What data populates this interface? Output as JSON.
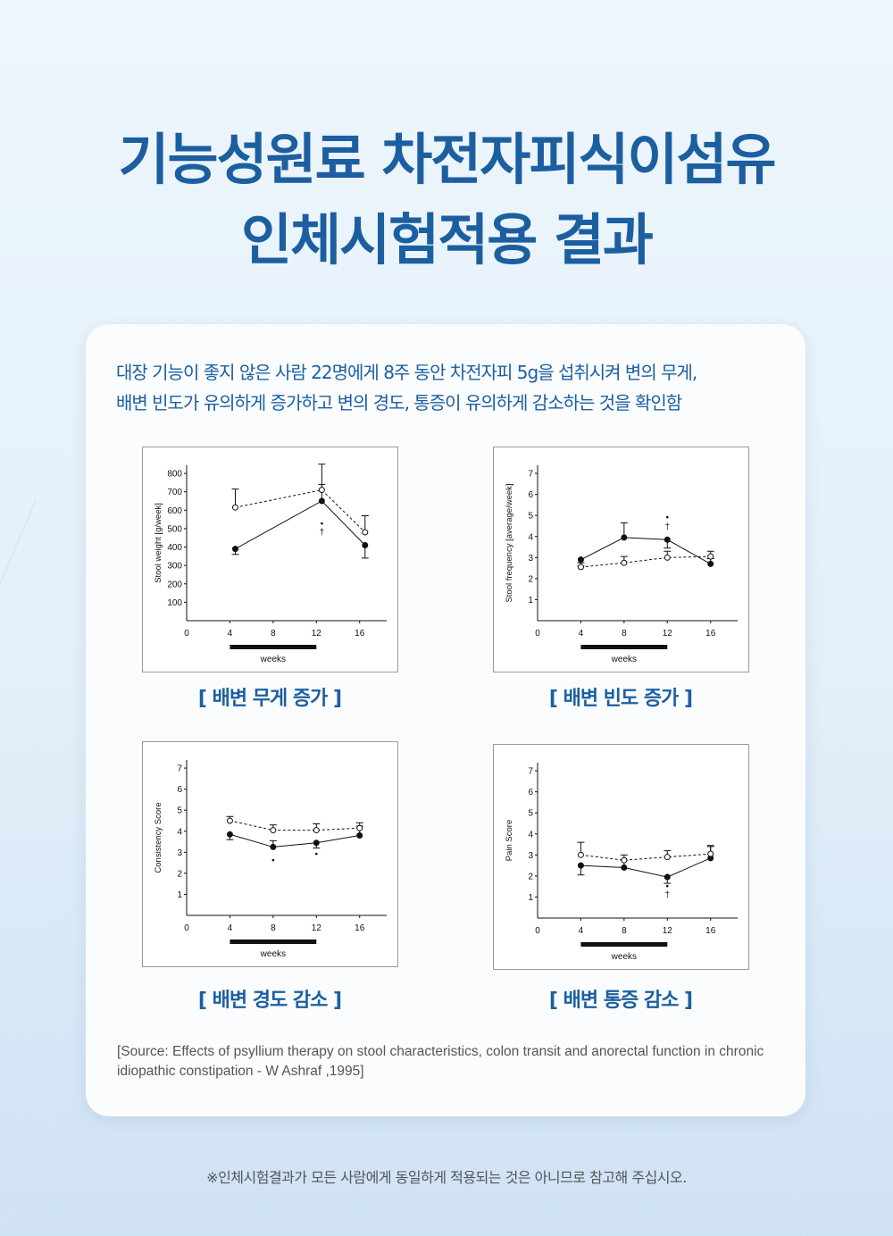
{
  "title_line1": "기능성원료 차전자피식이섬유",
  "title_line2": "인체시험적용 결과",
  "description": [
    "대장 기능이 좋지 않은 사람 22명에게 8주 동안 차전자피 5g을 섭취시켜 변의 무게,",
    "배변 빈도가 유의하게 증가하고 변의 경도, 통증이 유의하게 감소하는 것을 확인함"
  ],
  "captions": [
    "[ 배변 무게 증가 ]",
    "[ 배변 빈도 증가 ]",
    "[ 배변 경도 감소 ]",
    "[ 배변 통증 감소 ]"
  ],
  "source": "[Source: Effects of psyllium therapy on stool characteristics, colon transit and anorectal function in chronic idiopathic constipation - W Ashraf ,1995]",
  "footnote": "※인체시험결과가 모든 사람에게 동일하게 적용되는 것은 아니므로 참고해 주십시오.",
  "colors": {
    "title": "#1c5fa0",
    "text": "#555555"
  },
  "chart_data": [
    {
      "type": "line",
      "ylabel": "Stool weight [g/week]",
      "xlabel": "weeks",
      "x_ticks": [
        0,
        4,
        8,
        12,
        16
      ],
      "y_ticks": [
        100,
        200,
        300,
        400,
        500,
        600,
        700,
        800
      ],
      "ylim": [
        0,
        800
      ],
      "treatment_bar": [
        4,
        12
      ],
      "series": [
        {
          "style": "solid-filled",
          "x": [
            4.5,
            12.5,
            16.5
          ],
          "y": [
            390,
            650,
            410
          ],
          "err": [
            30,
            90,
            70
          ]
        },
        {
          "style": "dashed-open",
          "x": [
            4.5,
            12.5,
            16.5
          ],
          "y": [
            615,
            710,
            480
          ],
          "err": [
            100,
            140,
            90
          ]
        }
      ],
      "markers": [
        {
          "x": 12.5,
          "y": 530,
          "text": "•"
        },
        {
          "x": 12.5,
          "y": 485,
          "text": "†"
        }
      ]
    },
    {
      "type": "line",
      "ylabel": "Stool frequency [average/week]",
      "xlabel": "weeks",
      "x_ticks": [
        0,
        4,
        8,
        12,
        16
      ],
      "y_ticks": [
        1,
        2,
        3,
        4,
        5,
        6,
        7
      ],
      "ylim": [
        0,
        7
      ],
      "treatment_bar": [
        4,
        12
      ],
      "series": [
        {
          "style": "solid-filled",
          "x": [
            4,
            8,
            12,
            16
          ],
          "y": [
            2.9,
            3.95,
            3.85,
            2.7
          ],
          "err": [
            0.3,
            0.7,
            0.4,
            0.25
          ]
        },
        {
          "style": "dashed-open",
          "x": [
            4,
            8,
            12,
            16
          ],
          "y": [
            2.55,
            2.75,
            3.0,
            3.05
          ],
          "err": [
            0.2,
            0.3,
            0.3,
            0.25
          ]
        }
      ],
      "markers": [
        {
          "x": 12,
          "y": 4.95,
          "text": "•"
        },
        {
          "x": 12,
          "y": 4.5,
          "text": "†"
        }
      ]
    },
    {
      "type": "line",
      "ylabel": "Consistency Score",
      "xlabel": "weeks",
      "x_ticks": [
        0,
        4,
        8,
        12,
        16
      ],
      "y_ticks": [
        1,
        2,
        3,
        4,
        5,
        6,
        7
      ],
      "ylim": [
        0,
        7
      ],
      "treatment_bar": [
        4,
        12
      ],
      "series": [
        {
          "style": "solid-filled",
          "x": [
            4,
            8,
            12,
            16
          ],
          "y": [
            3.85,
            3.25,
            3.45,
            3.8
          ],
          "err": [
            0.25,
            0.3,
            0.25,
            0.45
          ]
        },
        {
          "style": "dashed-open",
          "x": [
            4,
            8,
            12,
            16
          ],
          "y": [
            4.5,
            4.05,
            4.05,
            4.15
          ],
          "err": [
            0.2,
            0.25,
            0.3,
            0.25
          ]
        }
      ],
      "markers": [
        {
          "x": 8,
          "y": 2.65,
          "text": "•"
        },
        {
          "x": 12,
          "y": 2.95,
          "text": "•"
        }
      ]
    },
    {
      "type": "line",
      "ylabel": "Pain Score",
      "xlabel": "weeks",
      "x_ticks": [
        0,
        4,
        8,
        12,
        16
      ],
      "y_ticks": [
        1,
        2,
        3,
        4,
        5,
        6,
        7
      ],
      "ylim": [
        0,
        7
      ],
      "treatment_bar": [
        4,
        12
      ],
      "series": [
        {
          "style": "solid-filled",
          "x": [
            4,
            8,
            12,
            16
          ],
          "y": [
            2.5,
            2.4,
            1.95,
            2.85
          ],
          "err": [
            0.45,
            0.35,
            0.3,
            0.55
          ]
        },
        {
          "style": "dashed-open",
          "x": [
            4,
            8,
            12,
            16
          ],
          "y": [
            3.0,
            2.75,
            2.9,
            3.05
          ],
          "err": [
            0.6,
            0.25,
            0.3,
            0.4
          ]
        }
      ],
      "markers": [
        {
          "x": 12,
          "y": 1.55,
          "text": "•"
        },
        {
          "x": 12,
          "y": 1.15,
          "text": "†"
        }
      ]
    }
  ]
}
